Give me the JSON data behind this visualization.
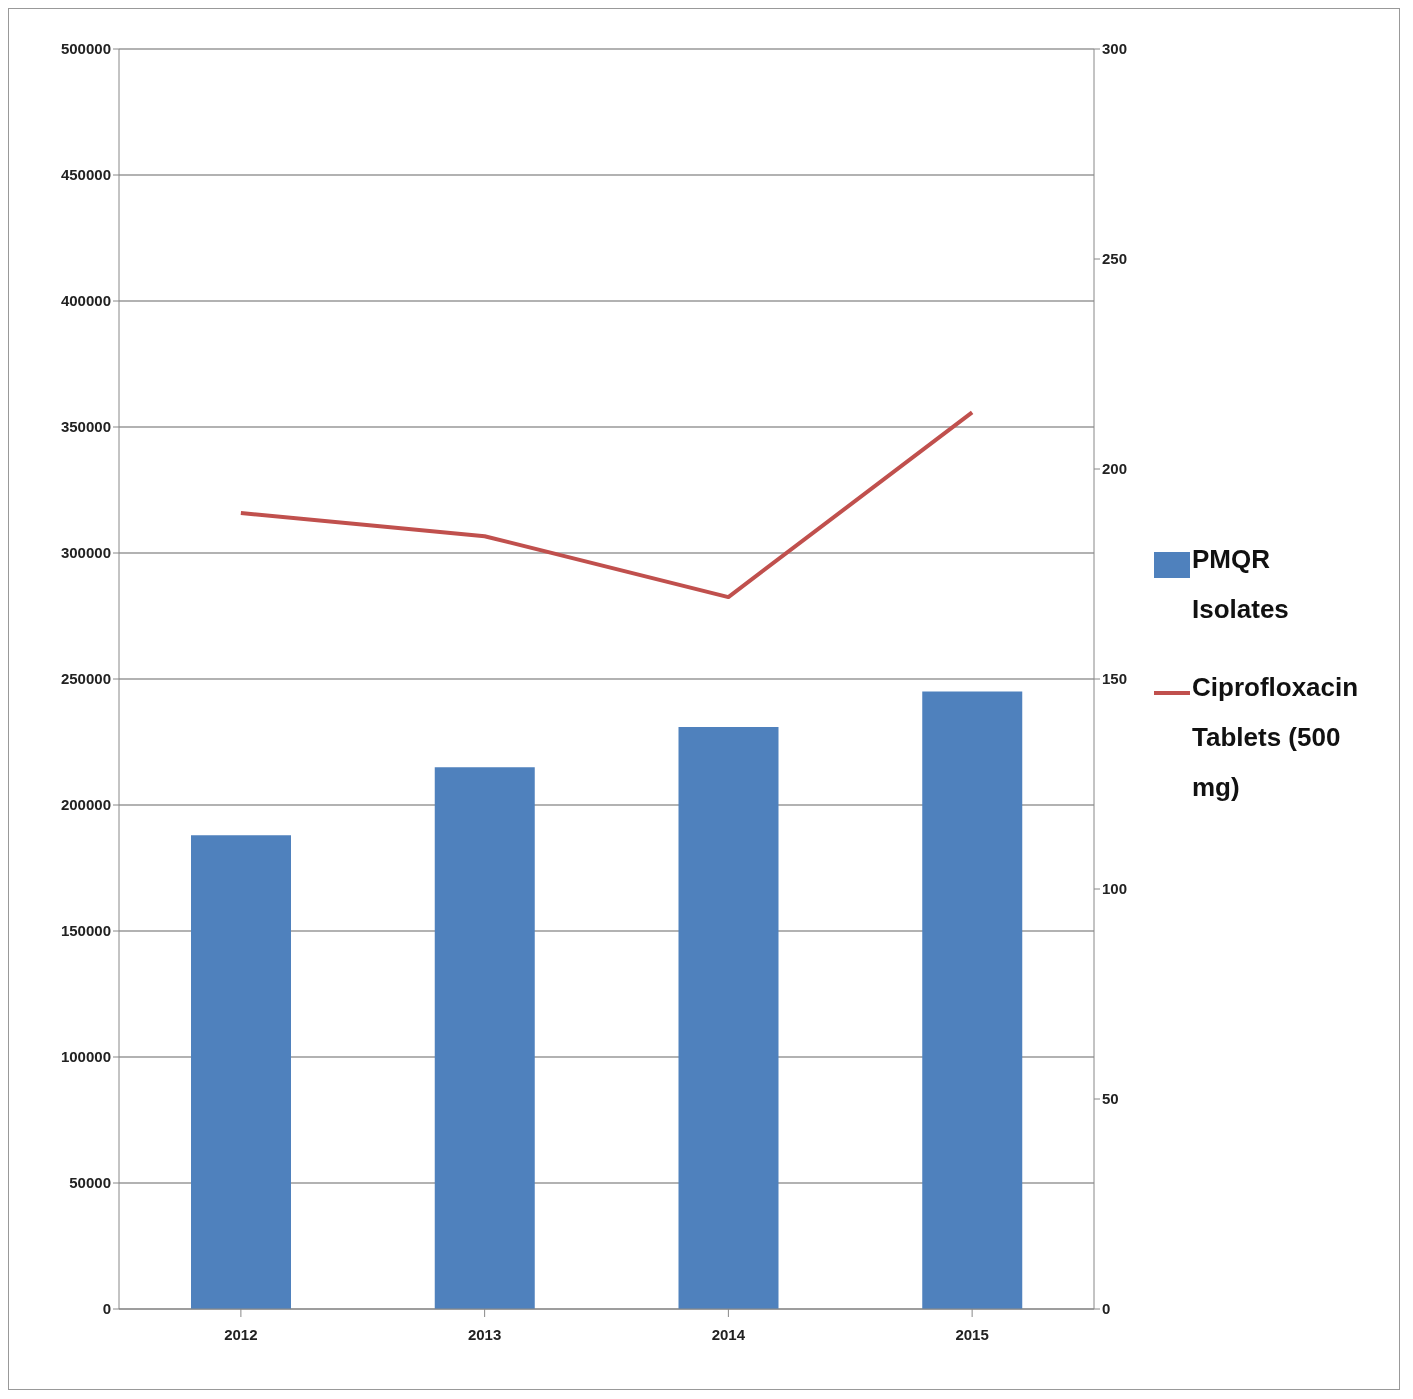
{
  "chart_data": {
    "type": "bar",
    "categories": [
      "2012",
      "2013",
      "2014",
      "2015"
    ],
    "series": [
      {
        "name": "PMQR Isolates",
        "color": "#4f81bd",
        "values": [
          188000,
          215000,
          231000,
          245000
        ]
      },
      {
        "name": "Ciprofloxacin Tablets (500 mg)",
        "type": "line",
        "axis": "y2",
        "color": "#c0504d",
        "values": [
          189.5,
          184,
          169.5,
          213.5
        ]
      }
    ],
    "ylim": [
      0,
      500000
    ],
    "yticks": [
      0,
      50000,
      100000,
      150000,
      200000,
      250000,
      300000,
      350000,
      400000,
      450000,
      500000
    ],
    "y2lim": [
      0,
      300
    ],
    "y2ticks": [
      0,
      50,
      100,
      150,
      200,
      250,
      300
    ],
    "grid": "y",
    "legend": "right",
    "marker": "none",
    "line_style": "solid"
  }
}
